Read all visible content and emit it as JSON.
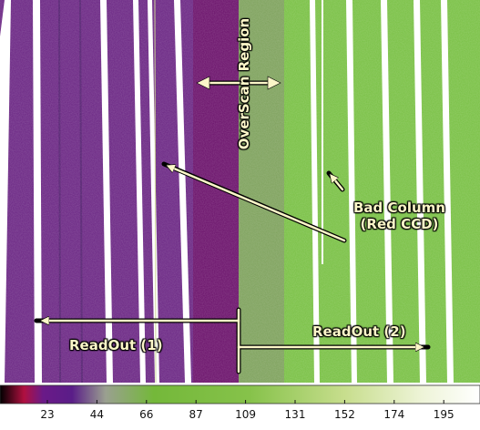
{
  "annotations": {
    "overscan": "OverScan Region",
    "bad_column_line1": "Bad Column",
    "bad_column_line2": "(Red CCD)",
    "readout_1": "ReadOut (1)",
    "readout_2": "ReadOut (2)"
  },
  "colorbar": {
    "ticks": [
      "23",
      "44",
      "66",
      "87",
      "109",
      "131",
      "152",
      "174",
      "195"
    ],
    "gradient": [
      "#000000",
      "#b01040",
      "#6a1a88",
      "#5a1d88",
      "#9aa090",
      "#74b83a",
      "#86c24a",
      "#c8de8e",
      "#eef4d8",
      "#ffffff"
    ]
  },
  "colors": {
    "left_region": "#6a2583",
    "overscan_left": "#6a106a",
    "overscan_right": "#7da15b",
    "right_region": "#78c043",
    "stripe": "#ffffff",
    "annotation": "#fbf6c8"
  }
}
